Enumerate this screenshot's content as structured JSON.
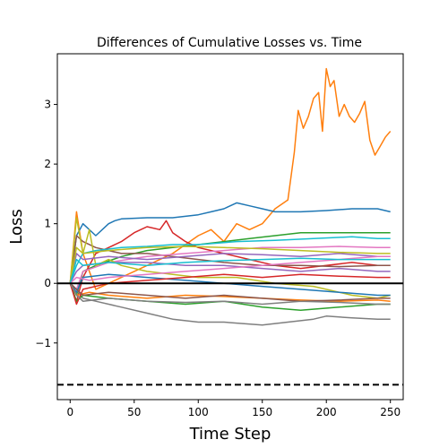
{
  "chart_data": {
    "type": "line",
    "title": "Differences of Cumulative Losses vs. Time",
    "xlabel": "Time Step",
    "ylabel": "Loss",
    "xlim": [
      -10,
      260
    ],
    "ylim": [
      -1.95,
      3.85
    ],
    "x_ticks": [
      0,
      50,
      100,
      150,
      200,
      250
    ],
    "y_ticks": [
      -1,
      0,
      1,
      2,
      3
    ],
    "y_tick_labels": [
      "−1",
      "0",
      "1",
      "2",
      "3"
    ],
    "grid": false,
    "reference_lines": [
      {
        "y": 0,
        "style": "solid",
        "color": "#000000"
      },
      {
        "y": -1.7,
        "style": "dashed",
        "color": "#000000"
      }
    ],
    "series": [
      {
        "color": "#ff7f0e",
        "points": [
          [
            0,
            0.0
          ],
          [
            5,
            1.2
          ],
          [
            10,
            0.5
          ],
          [
            20,
            -0.1
          ],
          [
            40,
            0.1
          ],
          [
            60,
            0.3
          ],
          [
            80,
            0.5
          ],
          [
            100,
            0.8
          ],
          [
            110,
            0.9
          ],
          [
            120,
            0.7
          ],
          [
            130,
            1.0
          ],
          [
            140,
            0.9
          ],
          [
            150,
            1.0
          ],
          [
            160,
            1.25
          ],
          [
            170,
            1.4
          ],
          [
            175,
            2.2
          ],
          [
            178,
            2.9
          ],
          [
            182,
            2.6
          ],
          [
            186,
            2.8
          ],
          [
            190,
            3.1
          ],
          [
            194,
            3.2
          ],
          [
            197,
            2.55
          ],
          [
            200,
            3.6
          ],
          [
            203,
            3.3
          ],
          [
            206,
            3.4
          ],
          [
            210,
            2.8
          ],
          [
            214,
            3.0
          ],
          [
            218,
            2.8
          ],
          [
            222,
            2.7
          ],
          [
            226,
            2.85
          ],
          [
            230,
            3.05
          ],
          [
            234,
            2.4
          ],
          [
            238,
            2.15
          ],
          [
            242,
            2.3
          ],
          [
            246,
            2.45
          ],
          [
            250,
            2.55
          ]
        ]
      },
      {
        "color": "#1f77b4",
        "points": [
          [
            0,
            0.0
          ],
          [
            5,
            0.8
          ],
          [
            10,
            1.0
          ],
          [
            20,
            0.8
          ],
          [
            30,
            1.0
          ],
          [
            35,
            1.05
          ],
          [
            40,
            1.08
          ],
          [
            60,
            1.1
          ],
          [
            80,
            1.1
          ],
          [
            100,
            1.15
          ],
          [
            110,
            1.2
          ],
          [
            120,
            1.25
          ],
          [
            125,
            1.3
          ],
          [
            130,
            1.35
          ],
          [
            140,
            1.3
          ],
          [
            150,
            1.25
          ],
          [
            160,
            1.2
          ],
          [
            180,
            1.2
          ],
          [
            200,
            1.22
          ],
          [
            220,
            1.25
          ],
          [
            240,
            1.25
          ],
          [
            250,
            1.2
          ]
        ]
      },
      {
        "color": "#2ca02c",
        "points": [
          [
            0,
            0.0
          ],
          [
            5,
            -0.2
          ],
          [
            10,
            0.2
          ],
          [
            20,
            0.3
          ],
          [
            40,
            0.45
          ],
          [
            60,
            0.55
          ],
          [
            80,
            0.6
          ],
          [
            100,
            0.65
          ],
          [
            120,
            0.7
          ],
          [
            140,
            0.75
          ],
          [
            160,
            0.8
          ],
          [
            180,
            0.85
          ],
          [
            200,
            0.85
          ],
          [
            220,
            0.85
          ],
          [
            240,
            0.85
          ],
          [
            250,
            0.85
          ]
        ]
      },
      {
        "color": "#d62728",
        "points": [
          [
            0,
            0.0
          ],
          [
            5,
            -0.3
          ],
          [
            10,
            0.1
          ],
          [
            20,
            0.5
          ],
          [
            30,
            0.6
          ],
          [
            40,
            0.7
          ],
          [
            50,
            0.85
          ],
          [
            60,
            0.95
          ],
          [
            70,
            0.9
          ],
          [
            75,
            1.05
          ],
          [
            80,
            0.85
          ],
          [
            90,
            0.7
          ],
          [
            100,
            0.6
          ],
          [
            110,
            0.55
          ],
          [
            120,
            0.5
          ],
          [
            140,
            0.4
          ],
          [
            160,
            0.3
          ],
          [
            180,
            0.25
          ],
          [
            200,
            0.3
          ],
          [
            220,
            0.35
          ],
          [
            240,
            0.3
          ],
          [
            250,
            0.3
          ]
        ]
      },
      {
        "color": "#9467bd",
        "points": [
          [
            0,
            0.0
          ],
          [
            5,
            0.2
          ],
          [
            10,
            0.3
          ],
          [
            30,
            0.35
          ],
          [
            60,
            0.35
          ],
          [
            90,
            0.3
          ],
          [
            120,
            0.3
          ],
          [
            150,
            0.25
          ],
          [
            180,
            0.2
          ],
          [
            210,
            0.25
          ],
          [
            240,
            0.2
          ],
          [
            250,
            0.2
          ]
        ]
      },
      {
        "color": "#8c564b",
        "points": [
          [
            0,
            0.0
          ],
          [
            5,
            0.8
          ],
          [
            10,
            0.7
          ],
          [
            20,
            0.6
          ],
          [
            40,
            0.5
          ],
          [
            60,
            0.5
          ],
          [
            80,
            0.45
          ],
          [
            100,
            0.4
          ],
          [
            120,
            0.35
          ],
          [
            150,
            0.3
          ],
          [
            180,
            0.3
          ],
          [
            210,
            0.28
          ],
          [
            240,
            0.3
          ],
          [
            250,
            0.3
          ]
        ]
      },
      {
        "color": "#e377c2",
        "points": [
          [
            0,
            0.0
          ],
          [
            5,
            -0.1
          ],
          [
            10,
            0.2
          ],
          [
            30,
            0.35
          ],
          [
            60,
            0.45
          ],
          [
            90,
            0.5
          ],
          [
            120,
            0.55
          ],
          [
            150,
            0.6
          ],
          [
            180,
            0.6
          ],
          [
            210,
            0.62
          ],
          [
            240,
            0.6
          ],
          [
            250,
            0.6
          ]
        ]
      },
      {
        "color": "#7f7f7f",
        "points": [
          [
            0,
            0.0
          ],
          [
            5,
            -0.1
          ],
          [
            10,
            -0.25
          ],
          [
            20,
            -0.3
          ],
          [
            40,
            -0.4
          ],
          [
            60,
            -0.5
          ],
          [
            80,
            -0.6
          ],
          [
            100,
            -0.65
          ],
          [
            120,
            -0.65
          ],
          [
            150,
            -0.7
          ],
          [
            170,
            -0.65
          ],
          [
            190,
            -0.6
          ],
          [
            200,
            -0.55
          ],
          [
            220,
            -0.58
          ],
          [
            240,
            -0.6
          ],
          [
            250,
            -0.6
          ]
        ]
      },
      {
        "color": "#bcbd22",
        "points": [
          [
            0,
            0.0
          ],
          [
            5,
            1.1
          ],
          [
            10,
            0.5
          ],
          [
            15,
            0.9
          ],
          [
            20,
            0.3
          ],
          [
            30,
            0.4
          ],
          [
            40,
            0.3
          ],
          [
            60,
            0.2
          ],
          [
            80,
            0.15
          ],
          [
            100,
            0.1
          ],
          [
            130,
            0.1
          ],
          [
            160,
            0.0
          ],
          [
            190,
            -0.05
          ],
          [
            220,
            -0.2
          ],
          [
            240,
            -0.25
          ],
          [
            250,
            -0.2
          ]
        ]
      },
      {
        "color": "#17becf",
        "points": [
          [
            0,
            0.0
          ],
          [
            5,
            0.3
          ],
          [
            10,
            0.5
          ],
          [
            20,
            0.55
          ],
          [
            40,
            0.6
          ],
          [
            60,
            0.62
          ],
          [
            80,
            0.65
          ],
          [
            100,
            0.65
          ],
          [
            130,
            0.7
          ],
          [
            160,
            0.72
          ],
          [
            190,
            0.75
          ],
          [
            220,
            0.78
          ],
          [
            240,
            0.75
          ],
          [
            250,
            0.75
          ]
        ]
      },
      {
        "color": "#1f77b4",
        "points": [
          [
            0,
            0.0
          ],
          [
            5,
            -0.15
          ],
          [
            10,
            0.1
          ],
          [
            30,
            0.15
          ],
          [
            60,
            0.1
          ],
          [
            90,
            0.05
          ],
          [
            120,
            0.0
          ],
          [
            150,
            -0.05
          ],
          [
            180,
            -0.1
          ],
          [
            210,
            -0.15
          ],
          [
            240,
            -0.2
          ],
          [
            250,
            -0.2
          ]
        ]
      },
      {
        "color": "#ff7f0e",
        "points": [
          [
            0,
            0.0
          ],
          [
            5,
            -0.2
          ],
          [
            15,
            -0.15
          ],
          [
            30,
            -0.2
          ],
          [
            60,
            -0.25
          ],
          [
            90,
            -0.2
          ],
          [
            120,
            -0.22
          ],
          [
            150,
            -0.25
          ],
          [
            180,
            -0.28
          ],
          [
            210,
            -0.3
          ],
          [
            240,
            -0.28
          ],
          [
            250,
            -0.3
          ]
        ]
      },
      {
        "color": "#2ca02c",
        "points": [
          [
            0,
            0.0
          ],
          [
            5,
            -0.3
          ],
          [
            10,
            -0.2
          ],
          [
            30,
            -0.25
          ],
          [
            60,
            -0.3
          ],
          [
            90,
            -0.35
          ],
          [
            120,
            -0.3
          ],
          [
            150,
            -0.4
          ],
          [
            180,
            -0.45
          ],
          [
            210,
            -0.4
          ],
          [
            240,
            -0.35
          ],
          [
            250,
            -0.35
          ]
        ]
      },
      {
        "color": "#d62728",
        "points": [
          [
            0,
            0.0
          ],
          [
            5,
            -0.35
          ],
          [
            10,
            -0.1
          ],
          [
            30,
            0.0
          ],
          [
            60,
            0.05
          ],
          [
            90,
            0.1
          ],
          [
            120,
            0.15
          ],
          [
            150,
            0.1
          ],
          [
            180,
            0.15
          ],
          [
            210,
            0.12
          ],
          [
            240,
            0.1
          ],
          [
            250,
            0.1
          ]
        ]
      },
      {
        "color": "#9467bd",
        "points": [
          [
            0,
            0.0
          ],
          [
            5,
            0.5
          ],
          [
            10,
            0.4
          ],
          [
            30,
            0.45
          ],
          [
            60,
            0.4
          ],
          [
            90,
            0.45
          ],
          [
            120,
            0.5
          ],
          [
            150,
            0.48
          ],
          [
            180,
            0.45
          ],
          [
            210,
            0.5
          ],
          [
            240,
            0.45
          ],
          [
            250,
            0.45
          ]
        ]
      },
      {
        "color": "#8c564b",
        "points": [
          [
            0,
            0.0
          ],
          [
            5,
            -0.1
          ],
          [
            10,
            -0.2
          ],
          [
            30,
            -0.15
          ],
          [
            60,
            -0.2
          ],
          [
            90,
            -0.25
          ],
          [
            120,
            -0.2
          ],
          [
            150,
            -0.25
          ],
          [
            180,
            -0.3
          ],
          [
            210,
            -0.28
          ],
          [
            240,
            -0.25
          ],
          [
            250,
            -0.25
          ]
        ]
      },
      {
        "color": "#e377c2",
        "points": [
          [
            0,
            0.0
          ],
          [
            5,
            0.1
          ],
          [
            15,
            0.05
          ],
          [
            30,
            0.1
          ],
          [
            60,
            0.15
          ],
          [
            90,
            0.2
          ],
          [
            120,
            0.25
          ],
          [
            150,
            0.3
          ],
          [
            180,
            0.35
          ],
          [
            210,
            0.4
          ],
          [
            240,
            0.45
          ],
          [
            250,
            0.45
          ]
        ]
      },
      {
        "color": "#7f7f7f",
        "points": [
          [
            0,
            0.0
          ],
          [
            5,
            -0.2
          ],
          [
            10,
            -0.3
          ],
          [
            30,
            -0.25
          ],
          [
            60,
            -0.3
          ],
          [
            90,
            -0.32
          ],
          [
            120,
            -0.3
          ],
          [
            150,
            -0.35
          ],
          [
            180,
            -0.3
          ],
          [
            210,
            -0.32
          ],
          [
            240,
            -0.35
          ],
          [
            250,
            -0.35
          ]
        ]
      },
      {
        "color": "#bcbd22",
        "points": [
          [
            0,
            0.0
          ],
          [
            5,
            0.6
          ],
          [
            10,
            0.5
          ],
          [
            30,
            0.55
          ],
          [
            60,
            0.6
          ],
          [
            90,
            0.62
          ],
          [
            120,
            0.6
          ],
          [
            150,
            0.58
          ],
          [
            180,
            0.55
          ],
          [
            210,
            0.52
          ],
          [
            240,
            0.5
          ],
          [
            250,
            0.5
          ]
        ]
      },
      {
        "color": "#17becf",
        "points": [
          [
            0,
            0.0
          ],
          [
            5,
            0.4
          ],
          [
            10,
            0.3
          ],
          [
            30,
            0.35
          ],
          [
            60,
            0.3
          ],
          [
            90,
            0.35
          ],
          [
            120,
            0.38
          ],
          [
            150,
            0.4
          ],
          [
            180,
            0.42
          ],
          [
            210,
            0.4
          ],
          [
            240,
            0.4
          ],
          [
            250,
            0.4
          ]
        ]
      }
    ]
  }
}
